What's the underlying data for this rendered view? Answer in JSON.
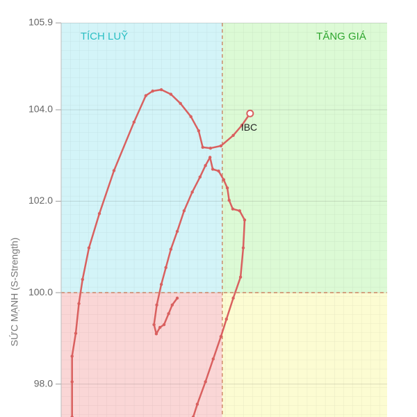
{
  "chart_data": {
    "type": "rrg",
    "y_label": "SỨC MẠNH (S-Strength)",
    "ylim": [
      97.28,
      105.9
    ],
    "yticks": [
      {
        "value": 98,
        "label": "98.0"
      },
      {
        "value": 100,
        "label": "100.0"
      },
      {
        "value": 102,
        "label": "102.0"
      },
      {
        "value": 104,
        "label": "104.0"
      },
      105.9
    ],
    "xlim": [
      96.46,
      103.62
    ],
    "quadrant_center": {
      "x": 100,
      "y": 100
    },
    "quadrant_colors": {
      "top-left": "#d3f4f8",
      "top-right": "#dcfad5",
      "bottom-left": "#fad6d6",
      "bottom-right": "#fcfcd2"
    },
    "quadrant_labels": [
      {
        "text": "TÍCH LUỸ",
        "position": "top-left",
        "color": "#2bbfc4"
      },
      {
        "text": "TĂNG GIÁ",
        "position": "top-right",
        "color": "#2ea62e"
      }
    ],
    "grid": true,
    "series": [
      {
        "name": "IBC",
        "color": "#d9605f",
        "x": [
          99.01,
          98.9,
          98.82,
          98.72,
          98.63,
          98.55,
          98.5,
          98.56,
          98.66,
          98.76,
          98.87,
          99.01,
          99.16,
          99.34,
          99.51,
          99.63,
          99.73,
          99.79,
          99.92,
          100.03,
          100.11,
          100.15,
          100.23,
          100.38,
          100.49,
          100.46,
          100.4,
          100.24,
          100.09,
          99.97,
          99.8,
          99.63,
          99.45,
          99.36,
          null,
          96.7,
          96.7,
          96.7,
          96.78,
          96.85,
          96.93,
          97.07,
          97.3,
          97.62,
          98.06,
          98.32,
          98.47,
          98.66,
          98.87,
          99.08,
          99.31,
          99.48,
          99.57,
          99.74,
          99.97,
          100.24,
          100.43,
          100.61
        ],
        "y": [
          99.88,
          99.73,
          99.54,
          99.3,
          99.24,
          99.1,
          99.3,
          99.73,
          100.18,
          100.55,
          100.95,
          101.34,
          101.79,
          102.2,
          102.53,
          102.78,
          102.96,
          102.7,
          102.66,
          102.47,
          102.29,
          102.02,
          101.83,
          101.79,
          101.59,
          100.98,
          100.34,
          99.88,
          99.42,
          99.04,
          98.55,
          98.05,
          97.56,
          97.28,
          null,
          97.28,
          98.05,
          98.61,
          99.11,
          99.76,
          100.29,
          100.98,
          101.73,
          102.67,
          103.73,
          104.31,
          104.41,
          104.44,
          104.34,
          104.14,
          103.85,
          103.54,
          103.18,
          103.16,
          103.21,
          103.44,
          103.66,
          103.92
        ]
      }
    ]
  }
}
